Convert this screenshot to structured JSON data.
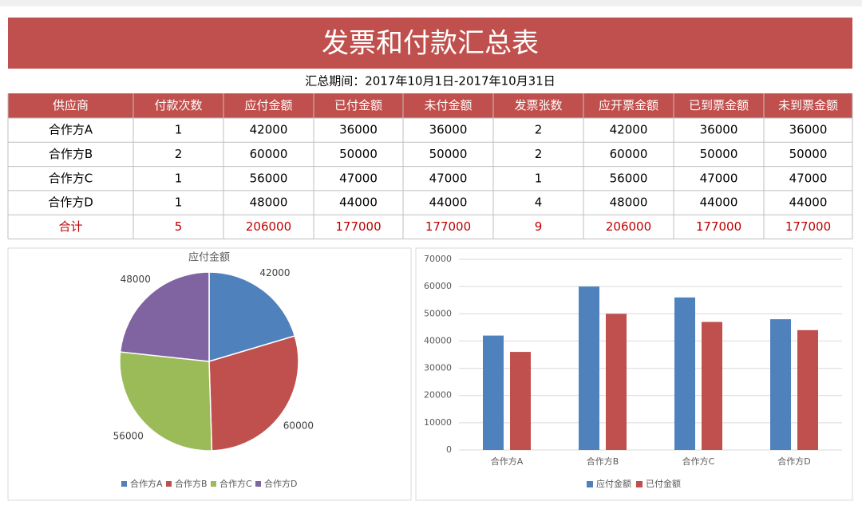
{
  "header": {
    "title": "发票和付款汇总表",
    "subtitle": "汇总期间：2017年10月1日-2017年10月31日"
  },
  "table": {
    "columns": [
      "供应商",
      "付款次数",
      "应付金额",
      "已付金额",
      "未付金额",
      "发票张数",
      "应开票金额",
      "已到票金额",
      "未到票金额"
    ],
    "rows": [
      [
        "合作方A",
        1,
        42000,
        36000,
        36000,
        2,
        42000,
        36000,
        36000
      ],
      [
        "合作方B",
        2,
        60000,
        50000,
        50000,
        2,
        60000,
        50000,
        50000
      ],
      [
        "合作方C",
        1,
        56000,
        47000,
        47000,
        1,
        56000,
        47000,
        47000
      ],
      [
        "合作方D",
        1,
        48000,
        44000,
        44000,
        4,
        48000,
        44000,
        44000
      ],
      [
        "合计",
        5,
        206000,
        177000,
        177000,
        9,
        206000,
        177000,
        177000
      ]
    ]
  },
  "chart_data": [
    {
      "type": "pie",
      "title": "应付金额",
      "categories": [
        "合作方A",
        "合作方B",
        "合作方C",
        "合作方D"
      ],
      "values": [
        42000,
        60000,
        56000,
        48000
      ],
      "colors": [
        "#4f81bd",
        "#c0504d",
        "#9bbb59",
        "#8064a2"
      ],
      "legend": "bottom"
    },
    {
      "type": "bar",
      "categories": [
        "合作方A",
        "合作方B",
        "合作方C",
        "合作方D"
      ],
      "series": [
        {
          "name": "应付金额",
          "color": "#4f81bd",
          "values": [
            42000,
            60000,
            56000,
            48000
          ]
        },
        {
          "name": "已付金额",
          "color": "#c0504d",
          "values": [
            36000,
            50000,
            47000,
            44000
          ]
        }
      ],
      "ylim": [
        0,
        70000
      ],
      "yticks": [
        0,
        10000,
        20000,
        30000,
        40000,
        50000,
        60000,
        70000
      ],
      "grid": true,
      "legend": "bottom"
    }
  ]
}
